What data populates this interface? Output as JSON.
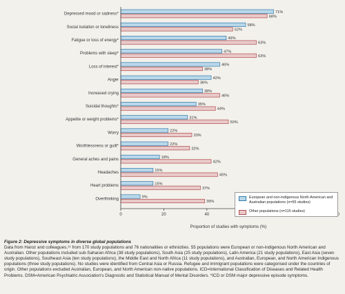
{
  "chart_data": {
    "type": "bar",
    "orientation": "horizontal",
    "categories": [
      "Depressed mood or sadness*",
      "Social isolation or loneliness",
      "Fatigue or loss of energy*",
      "Problems with sleep*",
      "Loss of interest*",
      "Anger",
      "Increased crying",
      "Suicidal thoughts*",
      "Appetite or weight problems*",
      "Worry",
      "Worthlessness or guilt*",
      "General aches and pains",
      "Headaches",
      "Heart problems",
      "Overthinking"
    ],
    "series": [
      {
        "name": "European and non-indigenous North American and Australian populations (n=55 studies)",
        "values": [
          71,
          58,
          49,
          47,
          46,
          42,
          38,
          35,
          31,
          22,
          22,
          18,
          15,
          15,
          9
        ],
        "value_labels": [
          "71%",
          "58%",
          "49%",
          "47%",
          "46%",
          "42%",
          "38%",
          "35%",
          "31%",
          "22%",
          "22%",
          "18%",
          "15%",
          "15%",
          "9%"
        ]
      },
      {
        "name": "Other populations (n=115 studies)",
        "values": [
          68,
          52,
          63,
          63,
          38,
          36,
          46,
          44,
          50,
          33,
          32,
          42,
          45,
          37,
          39
        ],
        "value_labels": [
          "68%",
          "52%",
          "63%",
          "63%",
          "38%",
          "36%",
          "46%",
          "44%",
          "50%",
          "33%",
          "32%",
          "42%",
          "45%",
          "37%",
          "39%"
        ]
      }
    ],
    "xlabel": "Proportion of studies with symptoms (%)",
    "ylabel": "",
    "xlim": [
      0,
      100
    ],
    "xticks": [
      0,
      20,
      40,
      60,
      80,
      100
    ],
    "grid": false,
    "legend_position": "bottom-right",
    "colors": {
      "series_1_fill": "#b9d8ea",
      "series_1_edge": "#2f78a8",
      "series_2_fill": "#e9c9c9",
      "series_2_edge": "#b04a4a"
    }
  },
  "caption": {
    "title": "Figure 2: Depressive symptoms in diverse global populations",
    "body": "Data from Haroz and colleagues,¹⁵ from 170 study populations and 76 nationalities or ethnicities. 55 populations were European or non-indigenous North American and Australian. Other populations included sub-Saharan Africa (38 study populations), South Asia (25 study populations), Latin America (21 study populations), East Asia (seven study populations), Southeast Asia (ten study populations), the Middle East and North Africa (11 study populations), and Australian, European, and North American Indigenous populations (three study populations). No studies were identified from Central Asia or Russia. Refugee and immigrant populations were categorised under the countries of origin. Other populations excluded Australian, European, and North American non-native populations. ICD=International Classification of Diseases and Related Health Problems. DSM=American Psychiatric Association's Diagnostic and Statistical Manual of Mental Disorders. *ICD or DSM major depressive episode symptoms."
  }
}
